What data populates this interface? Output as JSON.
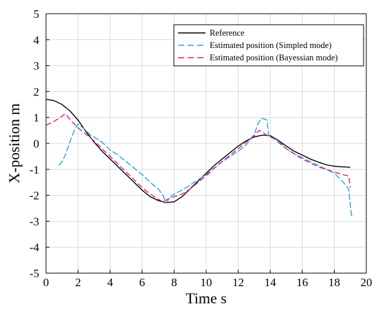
{
  "chart_data": {
    "type": "line",
    "xlabel": "Time s",
    "ylabel": "X-position m",
    "xlim": [
      0,
      20
    ],
    "ylim": [
      -5,
      5
    ],
    "xticks": [
      "0",
      "2",
      "4",
      "6",
      "8",
      "10",
      "12",
      "14",
      "16",
      "18",
      "20"
    ],
    "yticks": [
      "5",
      "4",
      "3",
      "2",
      "1",
      "0",
      "-1",
      "-2",
      "-3",
      "-4",
      "-5"
    ],
    "grid": true,
    "legend_position": "top-right",
    "series": [
      {
        "name": "Reference",
        "color": "#000000",
        "style": "solid",
        "points": [
          [
            0,
            1.7
          ],
          [
            0.5,
            1.65
          ],
          [
            1,
            1.5
          ],
          [
            1.5,
            1.25
          ],
          [
            2,
            0.9
          ],
          [
            2.5,
            0.45
          ],
          [
            3,
            0.05
          ],
          [
            3.5,
            -0.3
          ],
          [
            4,
            -0.6
          ],
          [
            4.5,
            -0.9
          ],
          [
            5,
            -1.2
          ],
          [
            5.5,
            -1.5
          ],
          [
            6,
            -1.8
          ],
          [
            6.5,
            -2.05
          ],
          [
            7,
            -2.2
          ],
          [
            7.5,
            -2.28
          ],
          [
            8,
            -2.25
          ],
          [
            8.5,
            -2.05
          ],
          [
            9,
            -1.75
          ],
          [
            9.5,
            -1.45
          ],
          [
            10,
            -1.15
          ],
          [
            10.5,
            -0.85
          ],
          [
            11,
            -0.6
          ],
          [
            11.5,
            -0.35
          ],
          [
            12,
            -0.1
          ],
          [
            12.5,
            0.1
          ],
          [
            13,
            0.25
          ],
          [
            13.5,
            0.32
          ],
          [
            14,
            0.3
          ],
          [
            14.5,
            0.12
          ],
          [
            15,
            -0.1
          ],
          [
            15.5,
            -0.3
          ],
          [
            16,
            -0.45
          ],
          [
            16.5,
            -0.6
          ],
          [
            17,
            -0.72
          ],
          [
            17.5,
            -0.82
          ],
          [
            18,
            -0.88
          ],
          [
            18.5,
            -0.9
          ],
          [
            19,
            -0.92
          ]
        ]
      },
      {
        "name": "Estimated position (Simpled mode)",
        "color": "#1fa8d6",
        "style": "dashed",
        "points": [
          [
            0.8,
            -0.85
          ],
          [
            1.0,
            -0.7
          ],
          [
            1.2,
            -0.45
          ],
          [
            1.4,
            -0.1
          ],
          [
            1.6,
            0.25
          ],
          [
            1.8,
            0.55
          ],
          [
            2.0,
            0.75
          ],
          [
            2.2,
            0.65
          ],
          [
            2.5,
            0.5
          ],
          [
            2.8,
            0.3
          ],
          [
            3.0,
            0.25
          ],
          [
            3.5,
            0.05
          ],
          [
            4.0,
            -0.25
          ],
          [
            4.5,
            -0.45
          ],
          [
            5.0,
            -0.7
          ],
          [
            5.5,
            -0.95
          ],
          [
            6.0,
            -1.2
          ],
          [
            6.5,
            -1.5
          ],
          [
            7.0,
            -1.75
          ],
          [
            7.3,
            -2.0
          ],
          [
            7.5,
            -2.3
          ],
          [
            7.7,
            -2.1
          ],
          [
            8.0,
            -1.95
          ],
          [
            8.5,
            -1.8
          ],
          [
            9.0,
            -1.6
          ],
          [
            9.5,
            -1.4
          ],
          [
            10.0,
            -1.2
          ],
          [
            10.5,
            -0.95
          ],
          [
            11.0,
            -0.7
          ],
          [
            11.5,
            -0.5
          ],
          [
            12.0,
            -0.3
          ],
          [
            12.5,
            -0.05
          ],
          [
            13.0,
            0.35
          ],
          [
            13.2,
            0.7
          ],
          [
            13.4,
            0.95
          ],
          [
            13.6,
            0.95
          ],
          [
            13.8,
            0.9
          ],
          [
            13.9,
            0.3
          ],
          [
            14.2,
            0.2
          ],
          [
            14.5,
            0.1
          ],
          [
            15.0,
            -0.2
          ],
          [
            15.5,
            -0.4
          ],
          [
            16.0,
            -0.55
          ],
          [
            16.5,
            -0.7
          ],
          [
            17.0,
            -0.85
          ],
          [
            17.5,
            -1.0
          ],
          [
            18.0,
            -1.15
          ],
          [
            18.5,
            -1.45
          ],
          [
            18.9,
            -1.75
          ],
          [
            19.0,
            -2.4
          ],
          [
            19.1,
            -2.85
          ]
        ]
      },
      {
        "name": "Estimated position (Bayessian mode)",
        "color": "#e0197d",
        "style": "dashed",
        "points": [
          [
            0,
            0.7
          ],
          [
            0.5,
            0.85
          ],
          [
            1.0,
            1.05
          ],
          [
            1.2,
            1.15
          ],
          [
            1.4,
            1.0
          ],
          [
            1.6,
            0.85
          ],
          [
            2.0,
            0.6
          ],
          [
            2.5,
            0.35
          ],
          [
            3.0,
            0.1
          ],
          [
            3.5,
            -0.2
          ],
          [
            4.0,
            -0.5
          ],
          [
            4.5,
            -0.8
          ],
          [
            5.0,
            -1.1
          ],
          [
            5.5,
            -1.4
          ],
          [
            6.0,
            -1.7
          ],
          [
            6.5,
            -1.95
          ],
          [
            7.0,
            -2.15
          ],
          [
            7.3,
            -2.25
          ],
          [
            7.6,
            -2.15
          ],
          [
            8.0,
            -2.05
          ],
          [
            8.5,
            -1.95
          ],
          [
            9.0,
            -1.75
          ],
          [
            9.5,
            -1.5
          ],
          [
            10.0,
            -1.25
          ],
          [
            10.5,
            -0.95
          ],
          [
            11.0,
            -0.7
          ],
          [
            11.5,
            -0.45
          ],
          [
            12.0,
            -0.2
          ],
          [
            12.5,
            0.05
          ],
          [
            13.0,
            0.3
          ],
          [
            13.3,
            0.5
          ],
          [
            13.5,
            0.45
          ],
          [
            13.8,
            0.3
          ],
          [
            14.2,
            0.2
          ],
          [
            14.5,
            0.05
          ],
          [
            15.0,
            -0.2
          ],
          [
            15.5,
            -0.4
          ],
          [
            16.0,
            -0.6
          ],
          [
            16.5,
            -0.75
          ],
          [
            17.0,
            -0.9
          ],
          [
            17.5,
            -1.0
          ],
          [
            18.0,
            -1.1
          ],
          [
            18.5,
            -1.2
          ],
          [
            18.9,
            -1.25
          ],
          [
            19.0,
            -1.7
          ]
        ]
      }
    ]
  }
}
